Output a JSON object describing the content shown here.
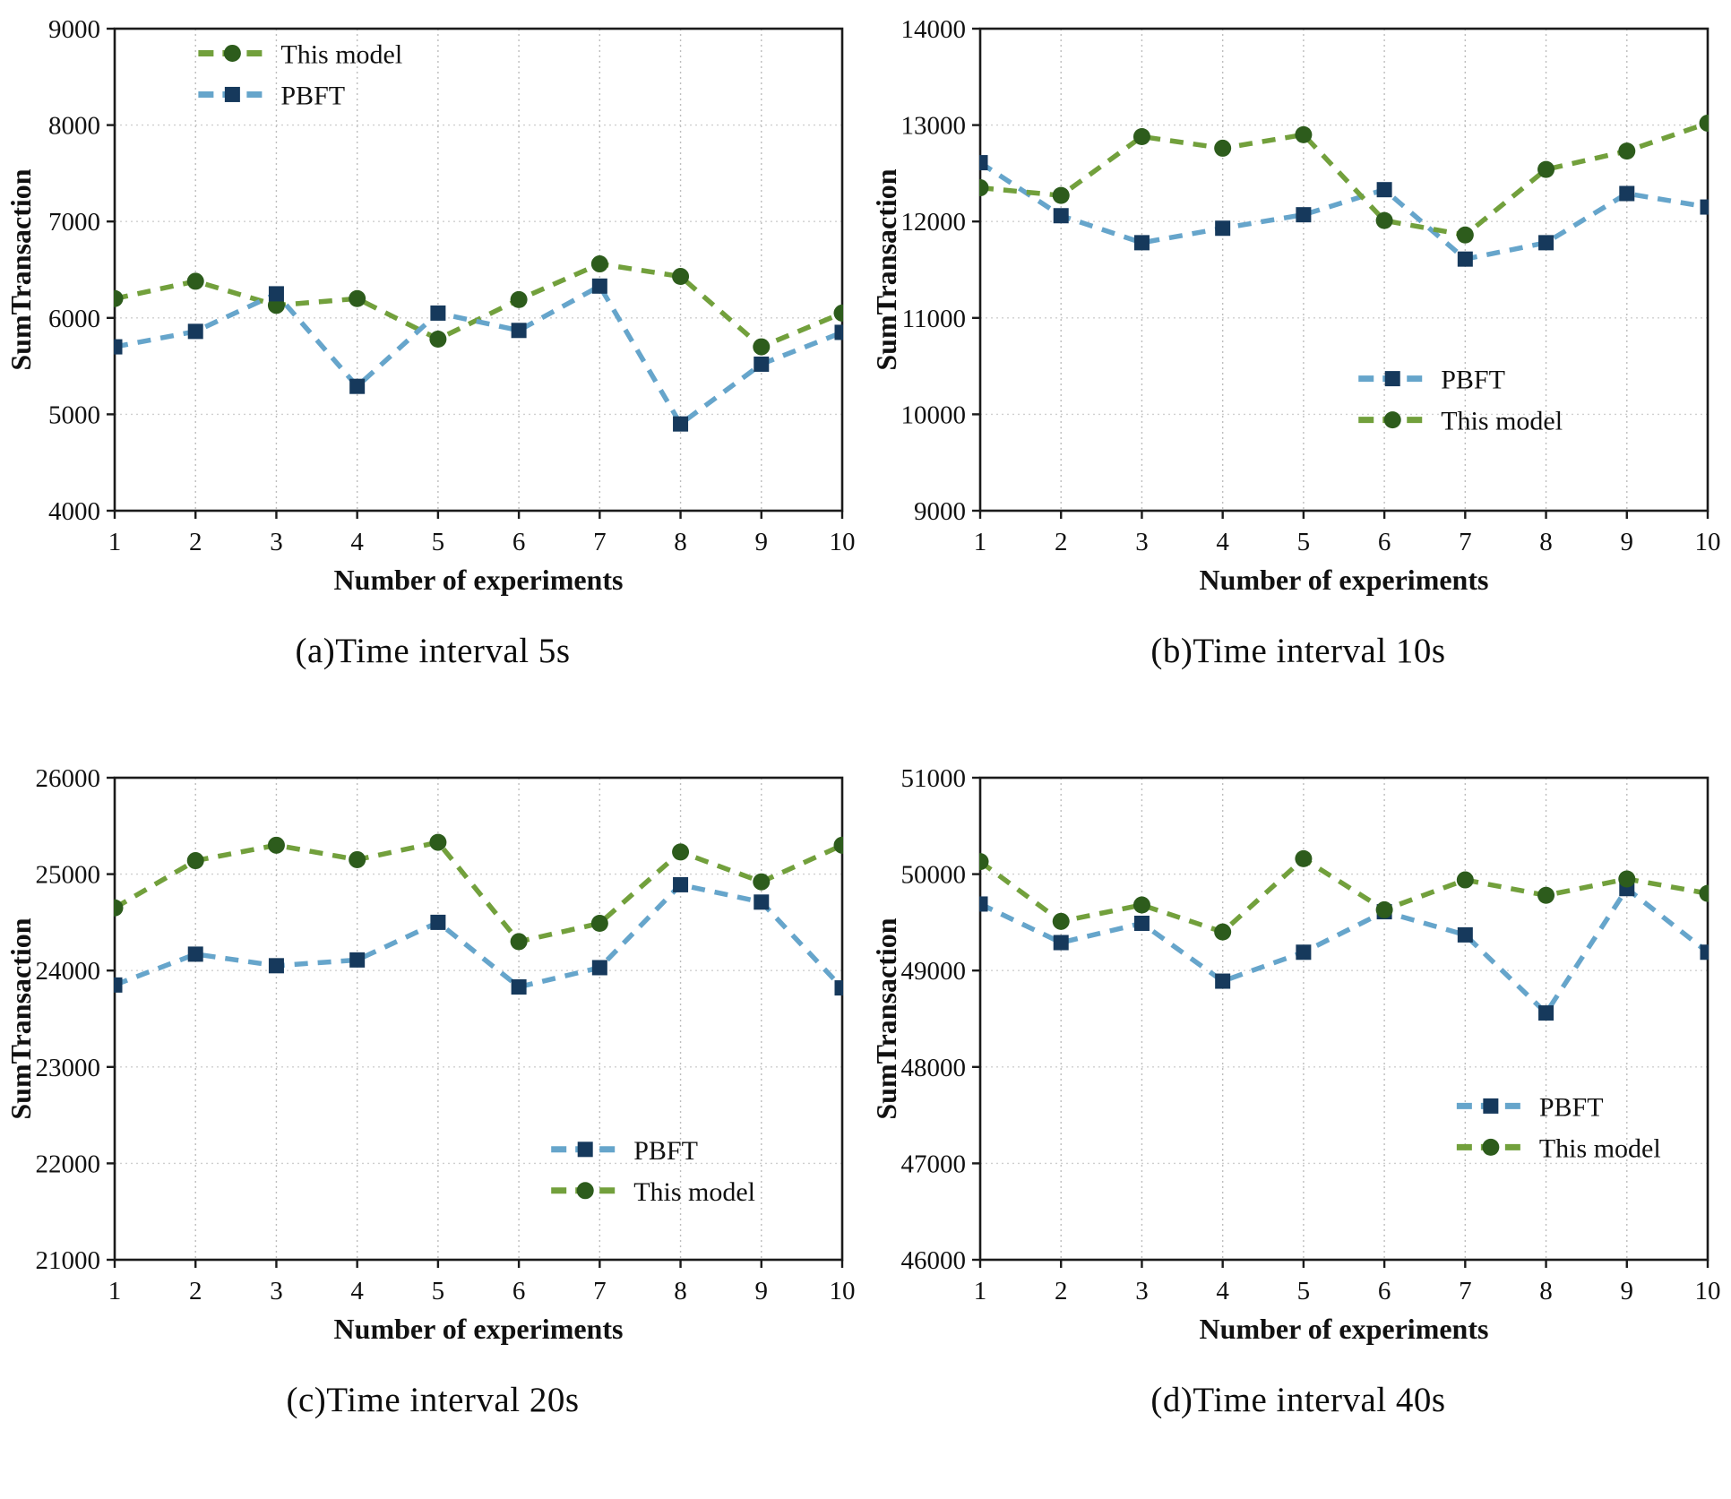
{
  "figure": {
    "xlabel": "Number of experiments",
    "ylabel": "SumTransaction",
    "colors": {
      "this_model_line": "#72a03c",
      "this_model_marker": "#2d5c1c",
      "pbft_line": "#66a5cb",
      "pbft_marker": "#16395c",
      "axis": "#1b1b1b",
      "grid_vertical": "#bdbdbd",
      "grid_horizontal": "#cfcfcf",
      "text": "#111111"
    }
  },
  "chart_data": [
    {
      "id": "a",
      "type": "line",
      "caption": "(a)Time interval 5s",
      "xlabel": "Number of experiments",
      "ylabel": "SumTransaction",
      "x": [
        1,
        2,
        3,
        4,
        5,
        6,
        7,
        8,
        9,
        10
      ],
      "ylim": [
        4000,
        9000
      ],
      "ytick_step": 1000,
      "grid": true,
      "legend": {
        "lx": 0.115,
        "ly": 0.025
      },
      "series": [
        {
          "name": "This model",
          "marker": "circle",
          "line_color": "#72a03c",
          "marker_color": "#2d5c1c",
          "values": [
            6200,
            6380,
            6130,
            6200,
            5780,
            6190,
            6560,
            6430,
            5700,
            6050
          ]
        },
        {
          "name": "PBFT",
          "marker": "square",
          "line_color": "#66a5cb",
          "marker_color": "#16395c",
          "values": [
            5700,
            5860,
            6250,
            5290,
            6050,
            5870,
            6330,
            4900,
            5520,
            5850
          ]
        }
      ]
    },
    {
      "id": "b",
      "type": "line",
      "caption": "(b)Time interval 10s",
      "xlabel": "Number of experiments",
      "ylabel": "SumTransaction",
      "x": [
        1,
        2,
        3,
        4,
        5,
        6,
        7,
        8,
        9,
        10
      ],
      "ylim": [
        9000,
        14000
      ],
      "ytick_step": 1000,
      "grid": true,
      "legend": {
        "lx": 0.52,
        "ly": 0.7
      },
      "series": [
        {
          "name": "PBFT",
          "marker": "square",
          "line_color": "#66a5cb",
          "marker_color": "#16395c",
          "values": [
            12610,
            12060,
            11780,
            11930,
            12070,
            12330,
            11610,
            11780,
            12290,
            12150
          ]
        },
        {
          "name": "This model",
          "marker": "circle",
          "line_color": "#72a03c",
          "marker_color": "#2d5c1c",
          "values": [
            12350,
            12270,
            12880,
            12760,
            12900,
            12010,
            11860,
            12540,
            12730,
            13020
          ]
        }
      ]
    },
    {
      "id": "c",
      "type": "line",
      "caption": "(c)Time interval 20s",
      "xlabel": "Number of experiments",
      "ylabel": "SumTransaction",
      "x": [
        1,
        2,
        3,
        4,
        5,
        6,
        7,
        8,
        9,
        10
      ],
      "ylim": [
        21000,
        26000
      ],
      "ytick_step": 1000,
      "grid": true,
      "legend": {
        "lx": 0.6,
        "ly": 0.745
      },
      "series": [
        {
          "name": "PBFT",
          "marker": "square",
          "line_color": "#66a5cb",
          "marker_color": "#16395c",
          "values": [
            23850,
            24170,
            24050,
            24110,
            24500,
            23830,
            24030,
            24890,
            24710,
            23820
          ]
        },
        {
          "name": "This model",
          "marker": "circle",
          "line_color": "#72a03c",
          "marker_color": "#2d5c1c",
          "values": [
            24650,
            25140,
            25300,
            25150,
            25330,
            24300,
            24490,
            25230,
            24920,
            25300
          ]
        }
      ]
    },
    {
      "id": "d",
      "type": "line",
      "caption": "(d)Time interval 40s",
      "xlabel": "Number of experiments",
      "ylabel": "SumTransaction",
      "x": [
        1,
        2,
        3,
        4,
        5,
        6,
        7,
        8,
        9,
        10
      ],
      "ylim": [
        46000,
        51000
      ],
      "ytick_step": 1000,
      "grid": true,
      "legend": {
        "lx": 0.655,
        "ly": 0.655
      },
      "series": [
        {
          "name": "PBFT",
          "marker": "square",
          "line_color": "#66a5cb",
          "marker_color": "#16395c",
          "values": [
            49690,
            49290,
            49490,
            48890,
            49190,
            49610,
            49370,
            48560,
            49850,
            49190
          ]
        },
        {
          "name": "This model",
          "marker": "circle",
          "line_color": "#72a03c",
          "marker_color": "#2d5c1c",
          "values": [
            50130,
            49510,
            49680,
            49400,
            50160,
            49630,
            49940,
            49780,
            49950,
            49800
          ]
        }
      ]
    }
  ]
}
